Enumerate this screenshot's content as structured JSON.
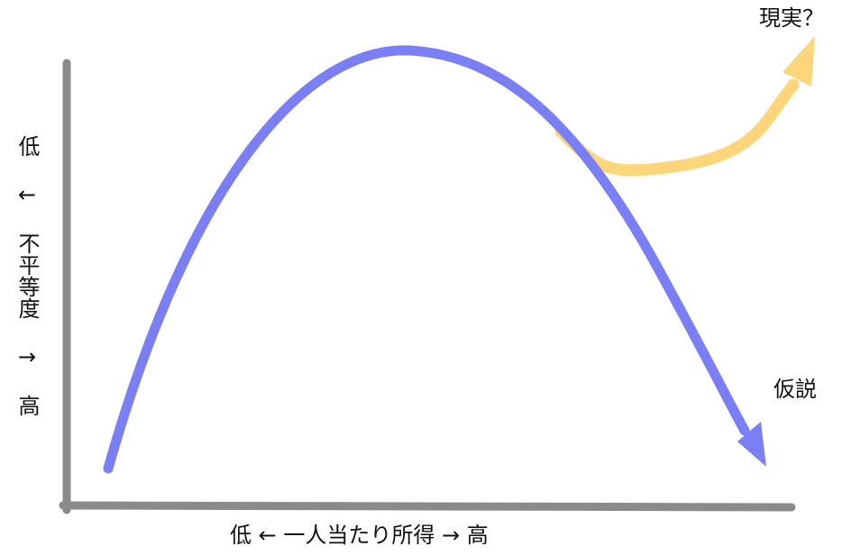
{
  "labels": {
    "x_axis": "低 ← 一人当たり所得 → 高",
    "y_axis": "低 ← 不平等度 → 高",
    "hypothesis": "仮説",
    "reality": "現実？"
  },
  "colors": {
    "axis": "#8a8a8a",
    "hypothesis_curve": "#7b7ff5",
    "reality_curve": "#fdd57a",
    "text": "#111111"
  },
  "curves": [
    {
      "name": "hypothesis",
      "shape": "inverted-u",
      "arrow": "down-right"
    },
    {
      "name": "reality",
      "shape": "inverted-u then rising",
      "arrow": "up-right"
    }
  ]
}
